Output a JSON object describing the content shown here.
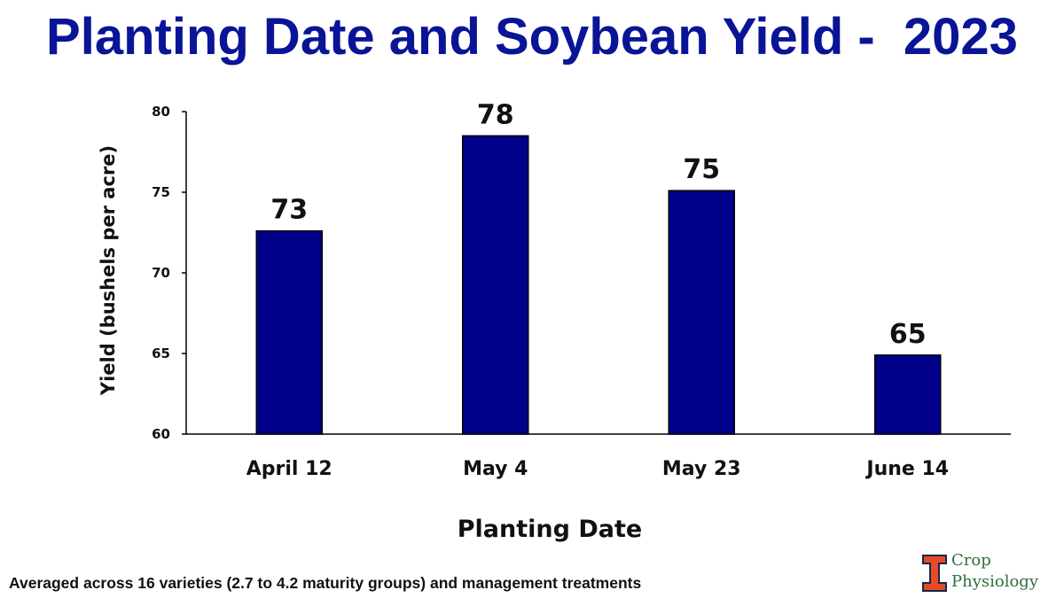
{
  "chart_data": {
    "type": "bar",
    "title": "Planting Date and Soybean Yield -  2023",
    "xlabel": "Planting Date",
    "ylabel": "Yield (bushels per acre)",
    "categories": [
      "April 12",
      "May 4",
      "May 23",
      "June 14"
    ],
    "values": [
      72.6,
      78.5,
      75.1,
      64.9
    ],
    "data_labels": [
      "73",
      "78",
      "75",
      "65"
    ],
    "ylim": [
      60,
      80
    ],
    "yticks": [
      60,
      65,
      70,
      75,
      80
    ],
    "grid": false,
    "bar_color": "#00008b"
  },
  "footnote": "Averaged across 16 varieties (2.7 to 4.2 maturity groups) and management treatments",
  "logo": {
    "word1": "Crop",
    "word2": "Physiology",
    "orange": "#e84a27",
    "navy": "#13294b",
    "text_color": "#2f6f3a"
  }
}
